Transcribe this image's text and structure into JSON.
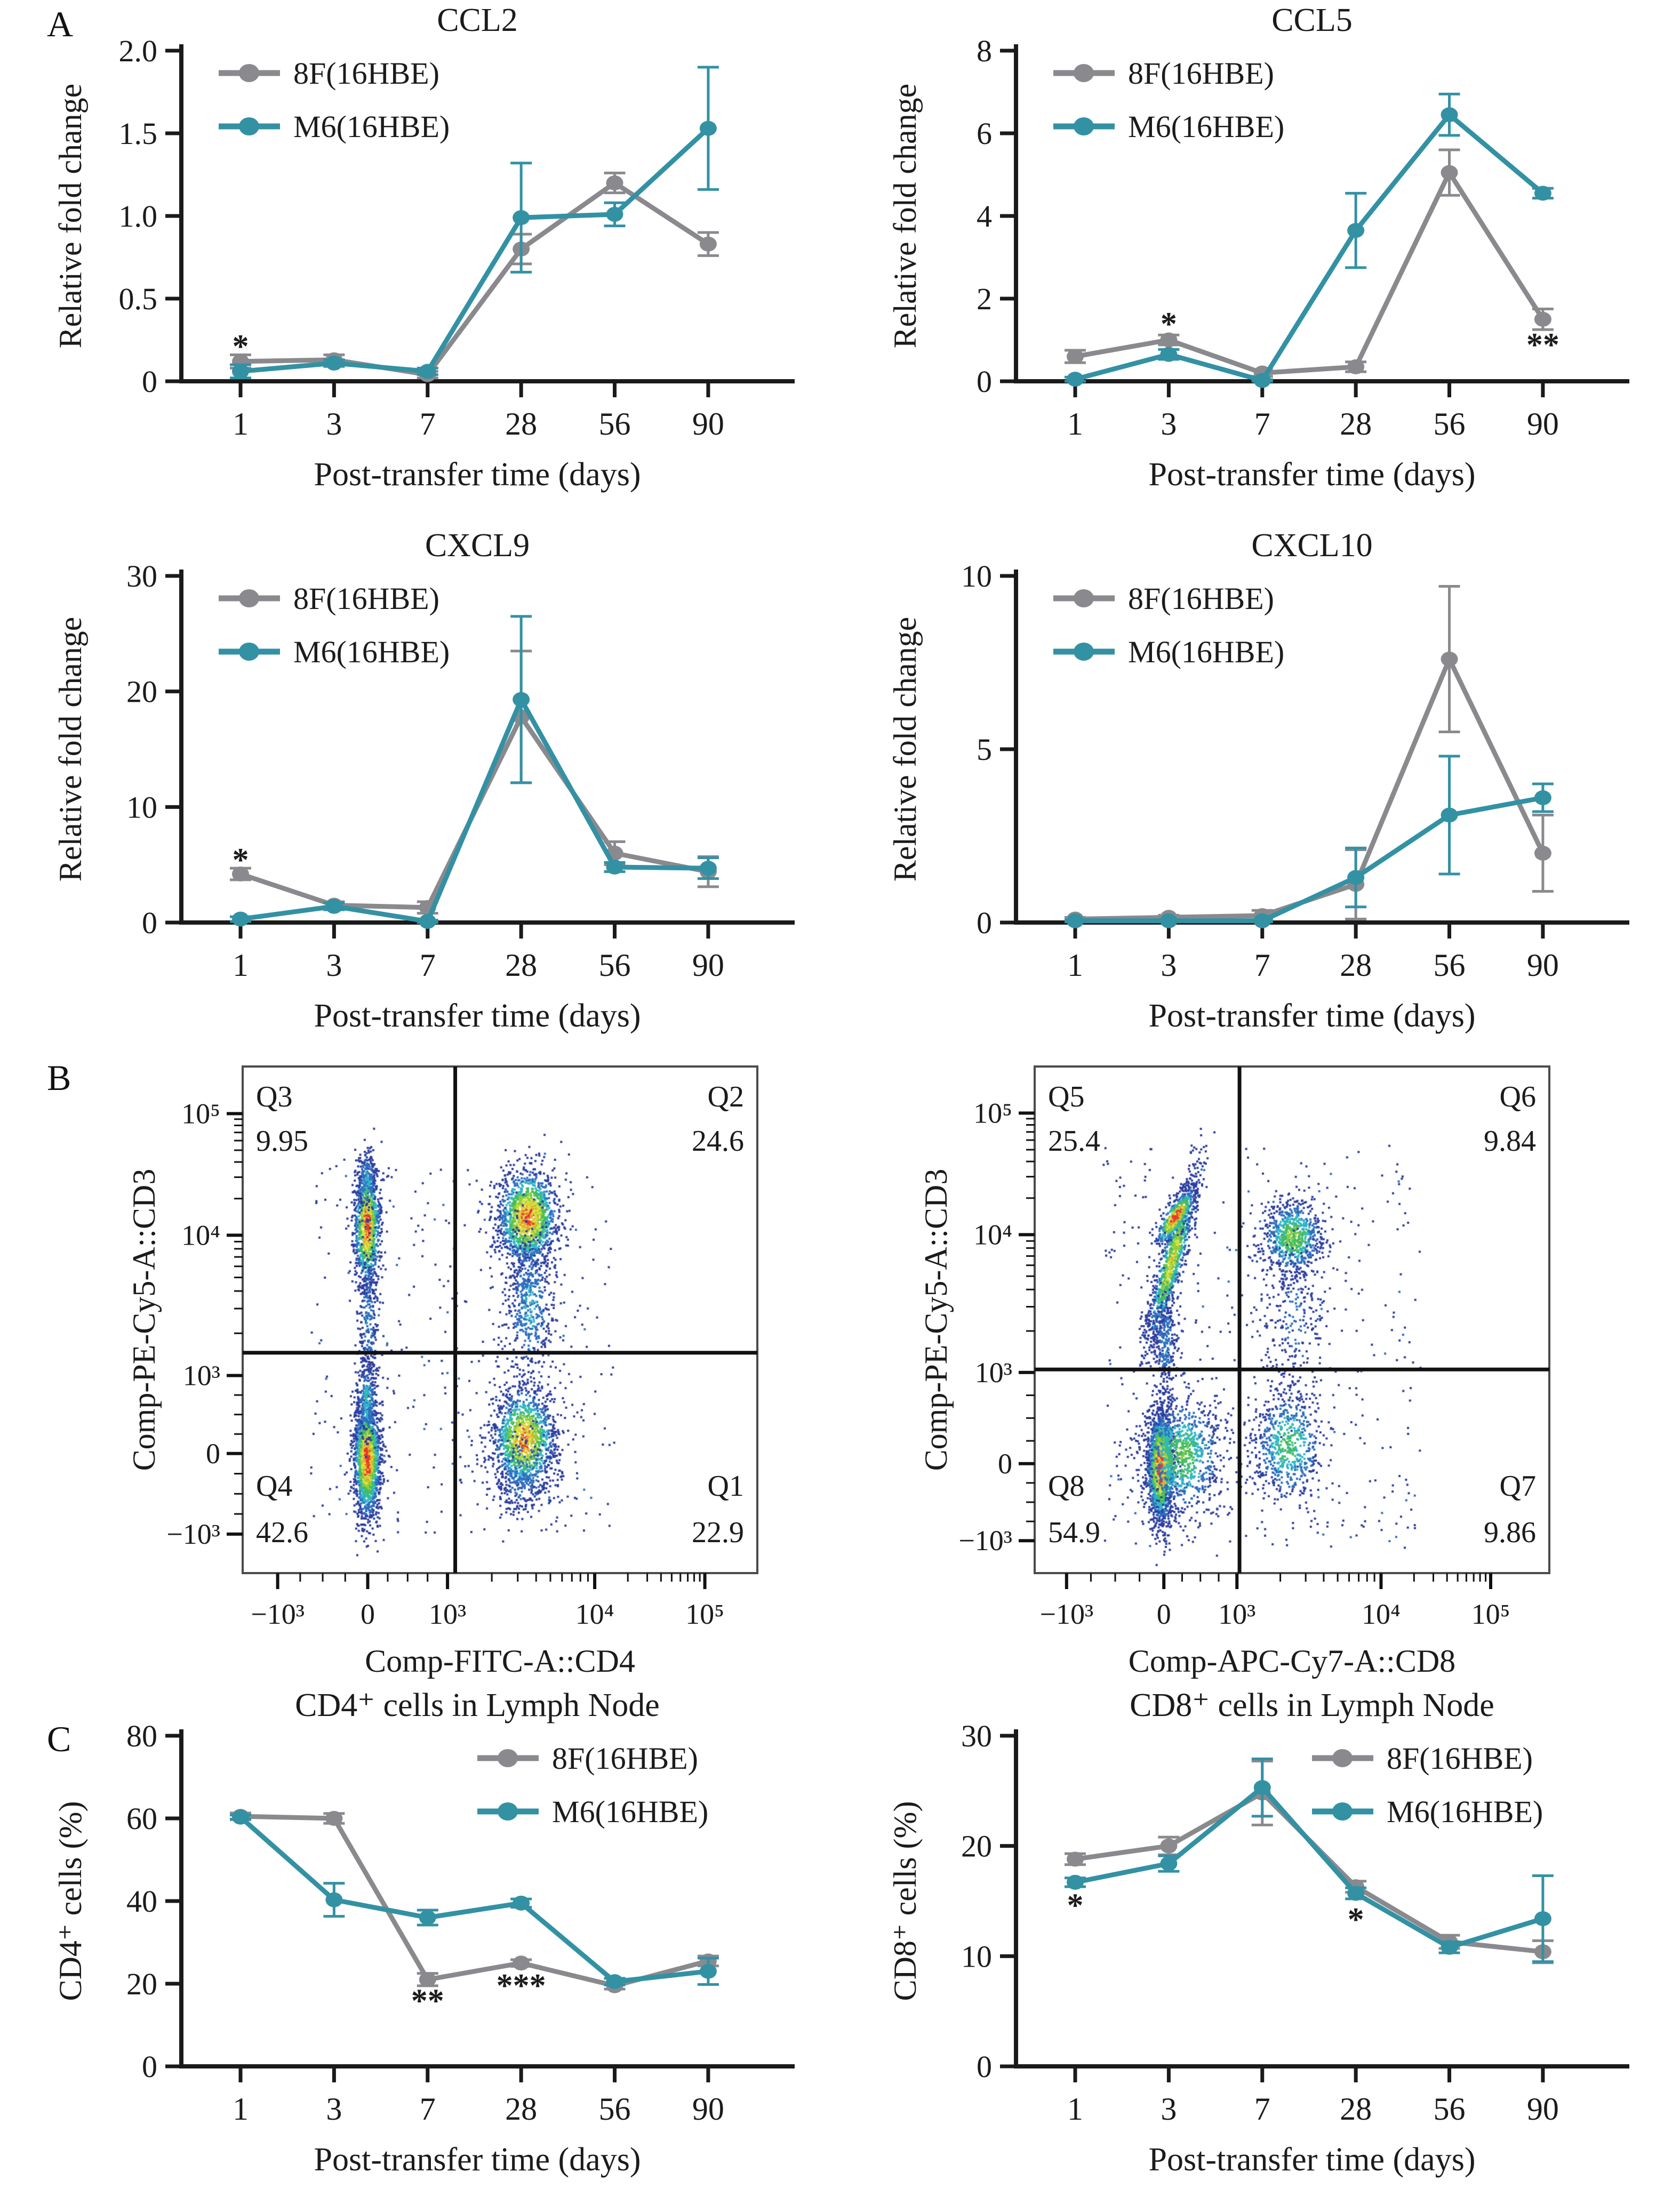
{
  "panels": {
    "a": "A",
    "b": "B",
    "c": "C"
  },
  "colors": {
    "series_8f": "#8a8a8e",
    "series_m6": "#3391a4",
    "axis": "#1a1a1a",
    "text": "#1b1b1b",
    "gate": "#111111",
    "star": "#111111"
  },
  "legend_labels": {
    "s8f": "8F(16HBE)",
    "m6": "M6(16HBE)"
  },
  "chart_data": [
    {
      "id": "ccl2",
      "type": "line",
      "cell": "cell-ccl2",
      "title": "CCL2",
      "ylabel": "Relative fold change",
      "xlabel": "Post-transfer time (days)",
      "categories": [
        "1",
        "3",
        "7",
        "28",
        "56",
        "90"
      ],
      "ymax": 2.0,
      "ylim": [
        0,
        2.0
      ],
      "grid": false,
      "legend_position": "top-left",
      "yticks": [
        {
          "v": 0,
          "label": "0"
        },
        {
          "v": 0.5,
          "label": "0.5"
        },
        {
          "v": 1.0,
          "label": "1.0"
        },
        {
          "v": 1.5,
          "label": "1.5"
        },
        {
          "v": 2.0,
          "label": "2.0"
        }
      ],
      "series": [
        {
          "name": "8F(16HBE)",
          "color_key": "series_8f",
          "values": [
            0.12,
            0.13,
            0.04,
            0.8,
            1.2,
            0.83
          ],
          "err": [
            0.04,
            0.03,
            0.02,
            0.09,
            0.06,
            0.07
          ]
        },
        {
          "name": "M6(16HBE)",
          "color_key": "series_m6",
          "values": [
            0.06,
            0.11,
            0.06,
            0.99,
            1.01,
            1.53
          ],
          "err": [
            0.04,
            0.02,
            0.02,
            0.33,
            0.07,
            0.37
          ]
        }
      ],
      "annotations": [
        {
          "cat": 0,
          "v": 0.21,
          "text": "*"
        }
      ]
    },
    {
      "id": "ccl5",
      "type": "line",
      "cell": "cell-ccl5",
      "title": "CCL5",
      "ylabel": "Relative fold change",
      "xlabel": "Post-transfer time (days)",
      "categories": [
        "1",
        "3",
        "7",
        "28",
        "56",
        "90"
      ],
      "ymax": 8,
      "ylim": [
        0,
        8
      ],
      "grid": false,
      "legend_position": "top-left",
      "yticks": [
        {
          "v": 0,
          "label": "0"
        },
        {
          "v": 2,
          "label": "2"
        },
        {
          "v": 4,
          "label": "4"
        },
        {
          "v": 6,
          "label": "6"
        },
        {
          "v": 8,
          "label": "8"
        }
      ],
      "series": [
        {
          "name": "8F(16HBE)",
          "color_key": "series_8f",
          "values": [
            0.6,
            1.0,
            0.2,
            0.35,
            5.05,
            1.5
          ],
          "err": [
            0.15,
            0.12,
            0.08,
            0.12,
            0.55,
            0.25
          ]
        },
        {
          "name": "M6(16HBE)",
          "color_key": "series_m6",
          "values": [
            0.05,
            0.65,
            0.02,
            3.65,
            6.45,
            4.55
          ],
          "err": [
            0.05,
            0.12,
            0.02,
            0.9,
            0.5,
            0.12
          ]
        }
      ],
      "annotations": [
        {
          "cat": 1,
          "v": 1.38,
          "text": "*"
        },
        {
          "cat": 5,
          "v": 0.88,
          "text": "**"
        }
      ]
    },
    {
      "id": "cxcl9",
      "type": "line",
      "cell": "cell-cxcl9",
      "title": "CXCL9",
      "ylabel": "Relative fold change",
      "xlabel": "Post-transfer time (days)",
      "categories": [
        "1",
        "3",
        "7",
        "28",
        "56",
        "90"
      ],
      "ymax": 30,
      "ylim": [
        0,
        30
      ],
      "grid": false,
      "legend_position": "top-left",
      "yticks": [
        {
          "v": 0,
          "label": "0"
        },
        {
          "v": 10,
          "label": "10"
        },
        {
          "v": 20,
          "label": "20"
        },
        {
          "v": 30,
          "label": "30"
        }
      ],
      "series": [
        {
          "name": "8F(16HBE)",
          "color_key": "series_8f",
          "values": [
            4.2,
            1.5,
            1.3,
            17.8,
            6.0,
            4.4
          ],
          "err": [
            0.5,
            0.3,
            0.5,
            5.7,
            1.0,
            1.3
          ]
        },
        {
          "name": "M6(16HBE)",
          "color_key": "series_m6",
          "values": [
            0.3,
            1.4,
            0.1,
            19.3,
            4.8,
            4.7
          ],
          "err": [
            0.2,
            0.3,
            0.1,
            7.2,
            0.4,
            0.9
          ]
        }
      ],
      "annotations": [
        {
          "cat": 0,
          "v": 5.4,
          "text": "*"
        }
      ]
    },
    {
      "id": "cxcl10",
      "type": "line",
      "cell": "cell-cxcl10",
      "title": "CXCL10",
      "ylabel": "Relative fold change",
      "xlabel": "Post-transfer time (days)",
      "categories": [
        "1",
        "3",
        "7",
        "28",
        "56",
        "90"
      ],
      "ymax": 10,
      "ylim": [
        0,
        10
      ],
      "grid": false,
      "legend_position": "top-left",
      "yticks": [
        {
          "v": 0,
          "label": "0"
        },
        {
          "v": 5,
          "label": "5"
        },
        {
          "v": 10,
          "label": "10"
        }
      ],
      "series": [
        {
          "name": "8F(16HBE)",
          "color_key": "series_8f",
          "values": [
            0.1,
            0.15,
            0.2,
            1.1,
            7.6,
            2.0
          ],
          "err": [
            0.05,
            0.06,
            0.15,
            1.0,
            2.1,
            1.1
          ]
        },
        {
          "name": "M6(16HBE)",
          "color_key": "series_m6",
          "values": [
            0.05,
            0.05,
            0.05,
            1.3,
            3.1,
            3.6
          ],
          "err": [
            0.03,
            0.03,
            0.03,
            0.85,
            1.7,
            0.4
          ]
        }
      ],
      "annotations": []
    },
    {
      "id": "flow_cd4",
      "type": "flow",
      "cell": "cell-flow-cd4",
      "xlabel": "Comp-FITC-A::CD4",
      "ylabel": "Comp-PE-Cy5-A::CD3",
      "xticks": [
        {
          "label": "−10³",
          "pos": 0.068
        },
        {
          "label": "0",
          "pos": 0.243
        },
        {
          "label": "10³",
          "pos": 0.398
        },
        {
          "label": "10⁴",
          "pos": 0.684
        },
        {
          "label": "10⁵",
          "pos": 0.898
        }
      ],
      "yticks": [
        {
          "label": "10⁵",
          "pos": 0.093
        },
        {
          "label": "10⁴",
          "pos": 0.333
        },
        {
          "label": "10³",
          "pos": 0.61
        },
        {
          "label": "0",
          "pos": 0.764
        },
        {
          "label": "−10³",
          "pos": 0.923
        }
      ],
      "gate": {
        "x": 0.413,
        "y": 0.565
      },
      "quadrants": [
        {
          "name": "Q3",
          "value": "9.95",
          "corner": "tl"
        },
        {
          "name": "Q2",
          "value": "24.6",
          "corner": "tr"
        },
        {
          "name": "Q4",
          "value": "42.6",
          "corner": "bl"
        },
        {
          "name": "Q1",
          "value": "22.9",
          "corner": "br"
        }
      ],
      "background": {
        "x0": 0.13,
        "x1": 0.72,
        "y0": 0.17,
        "y1": 0.92,
        "n": 380
      },
      "clusters": [
        {
          "cx": 0.24,
          "cy": 0.315,
          "sx": 0.013,
          "sy": 0.06,
          "n": 1000,
          "heat": 0.95
        },
        {
          "cx": 0.24,
          "cy": 0.225,
          "sx": 0.011,
          "sy": 0.035,
          "n": 200,
          "heat": 0.35
        },
        {
          "cx": 0.242,
          "cy": 0.5,
          "sx": 0.01,
          "sy": 0.075,
          "n": 260,
          "heat": 0.3
        },
        {
          "cx": 0.552,
          "cy": 0.295,
          "sx": 0.03,
          "sy": 0.048,
          "n": 1500,
          "heat": 0.92
        },
        {
          "cx": 0.556,
          "cy": 0.47,
          "sx": 0.024,
          "sy": 0.085,
          "n": 550,
          "heat": 0.35
        },
        {
          "cx": 0.24,
          "cy": 0.775,
          "sx": 0.013,
          "sy": 0.058,
          "n": 1700,
          "heat": 1.0
        },
        {
          "cx": 0.24,
          "cy": 0.655,
          "sx": 0.011,
          "sy": 0.045,
          "n": 280,
          "heat": 0.4
        },
        {
          "cx": 0.545,
          "cy": 0.735,
          "sx": 0.031,
          "sy": 0.052,
          "n": 1300,
          "heat": 0.88
        },
        {
          "cx": 0.545,
          "cy": 0.8,
          "sx": 0.035,
          "sy": 0.05,
          "n": 250,
          "heat": 0.3
        }
      ]
    },
    {
      "id": "flow_cd8",
      "type": "flow",
      "cell": "cell-flow-cd8",
      "xlabel": "Comp-APC-Cy7-A::CD8",
      "ylabel": "Comp-PE-Cy5-A::CD3",
      "xticks": [
        {
          "label": "−10³",
          "pos": 0.062
        },
        {
          "label": "0",
          "pos": 0.251
        },
        {
          "label": "10³",
          "pos": 0.393
        },
        {
          "label": "10⁴",
          "pos": 0.673
        },
        {
          "label": "10⁵",
          "pos": 0.886
        }
      ],
      "yticks": [
        {
          "label": "10⁵",
          "pos": 0.092
        },
        {
          "label": "10⁴",
          "pos": 0.332
        },
        {
          "label": "10³",
          "pos": 0.604
        },
        {
          "label": "0",
          "pos": 0.784
        },
        {
          "label": "−10³",
          "pos": 0.936
        }
      ],
      "gate": {
        "x": 0.398,
        "y": 0.598
      },
      "quadrants": [
        {
          "name": "Q5",
          "value": "25.4",
          "corner": "tl"
        },
        {
          "name": "Q6",
          "value": "9.84",
          "corner": "tr"
        },
        {
          "name": "Q8",
          "value": "54.9",
          "corner": "bl"
        },
        {
          "name": "Q7",
          "value": "9.86",
          "corner": "br"
        }
      ],
      "background": {
        "x0": 0.13,
        "x1": 0.75,
        "y0": 0.15,
        "y1": 0.95,
        "n": 420
      },
      "clusters": [
        {
          "cx": 0.265,
          "cy": 0.38,
          "sx": 0.012,
          "sy": 0.085,
          "tilt": -0.022,
          "n": 1100,
          "heat": 0.75
        },
        {
          "cx": 0.272,
          "cy": 0.295,
          "sx": 0.012,
          "sy": 0.028,
          "tilt": -0.015,
          "n": 450,
          "heat": 1.0
        },
        {
          "cx": 0.252,
          "cy": 0.545,
          "sx": 0.012,
          "sy": 0.055,
          "n": 280,
          "heat": 0.3
        },
        {
          "cx": 0.5,
          "cy": 0.335,
          "sx": 0.03,
          "sy": 0.038,
          "n": 750,
          "heat": 0.62
        },
        {
          "cx": 0.5,
          "cy": 0.5,
          "sx": 0.032,
          "sy": 0.09,
          "n": 260,
          "heat": 0.22
        },
        {
          "cx": 0.243,
          "cy": 0.79,
          "sx": 0.013,
          "sy": 0.055,
          "n": 1800,
          "heat": 1.0
        },
        {
          "cx": 0.285,
          "cy": 0.765,
          "sx": 0.042,
          "sy": 0.062,
          "n": 900,
          "heat": 0.55
        },
        {
          "cx": 0.49,
          "cy": 0.745,
          "sx": 0.037,
          "sy": 0.058,
          "n": 650,
          "heat": 0.5
        }
      ]
    },
    {
      "id": "cd4_ln",
      "type": "line",
      "cell": "cell-cd4",
      "title": "CD4⁺ cells in Lymph Node",
      "ylabel": "CD4⁺ cells (%)",
      "xlabel": "Post-transfer time (days)",
      "categories": [
        "1",
        "3",
        "7",
        "28",
        "56",
        "90"
      ],
      "ymax": 80,
      "ylim": [
        0,
        80
      ],
      "grid": false,
      "legend_position": "top-right",
      "yticks": [
        {
          "v": 0,
          "label": "0"
        },
        {
          "v": 20,
          "label": "20"
        },
        {
          "v": 40,
          "label": "40"
        },
        {
          "v": 60,
          "label": "60"
        },
        {
          "v": 80,
          "label": "80"
        }
      ],
      "series": [
        {
          "name": "8F(16HBE)",
          "color_key": "series_8f",
          "values": [
            60.5,
            60.0,
            21.0,
            25.0,
            19.5,
            25.5
          ],
          "err": [
            0.8,
            1.2,
            1.5,
            0.8,
            0.8,
            1.2
          ]
        },
        {
          "name": "M6(16HBE)",
          "color_key": "series_m6",
          "values": [
            60.3,
            40.3,
            36.0,
            39.5,
            20.5,
            23.0
          ],
          "err": [
            0.5,
            4.0,
            1.8,
            1.0,
            0.8,
            3.2
          ]
        }
      ],
      "annotations": [
        {
          "cat": 2,
          "v": 15.8,
          "text": "**"
        },
        {
          "cat": 3,
          "v": 19.5,
          "text": "***"
        }
      ]
    },
    {
      "id": "cd8_ln",
      "type": "line",
      "cell": "cell-cd8",
      "title": "CD8⁺ cells in Lymph Node",
      "ylabel": "CD8⁺ cells (%)",
      "xlabel": "Post-transfer time (days)",
      "categories": [
        "1",
        "3",
        "7",
        "28",
        "56",
        "90"
      ],
      "ymax": 30,
      "ylim": [
        0,
        30
      ],
      "grid": false,
      "legend_position": "top-right",
      "yticks": [
        {
          "v": 0,
          "label": "0"
        },
        {
          "v": 10,
          "label": "10"
        },
        {
          "v": 20,
          "label": "20"
        },
        {
          "v": 30,
          "label": "30"
        }
      ],
      "series": [
        {
          "name": "8F(16HBE)",
          "color_key": "series_8f",
          "values": [
            18.8,
            20.0,
            24.8,
            16.3,
            11.3,
            10.4
          ],
          "err": [
            0.5,
            0.8,
            2.9,
            0.5,
            0.6,
            1.0
          ]
        },
        {
          "name": "M6(16HBE)",
          "color_key": "series_m6",
          "values": [
            16.7,
            18.4,
            25.3,
            15.7,
            10.8,
            13.4
          ],
          "err": [
            0.4,
            0.7,
            2.6,
            0.5,
            0.5,
            3.9
          ]
        }
      ],
      "annotations": [
        {
          "cat": 0,
          "v": 14.6,
          "text": "*"
        },
        {
          "cat": 3,
          "v": 13.3,
          "text": "*"
        }
      ]
    }
  ]
}
